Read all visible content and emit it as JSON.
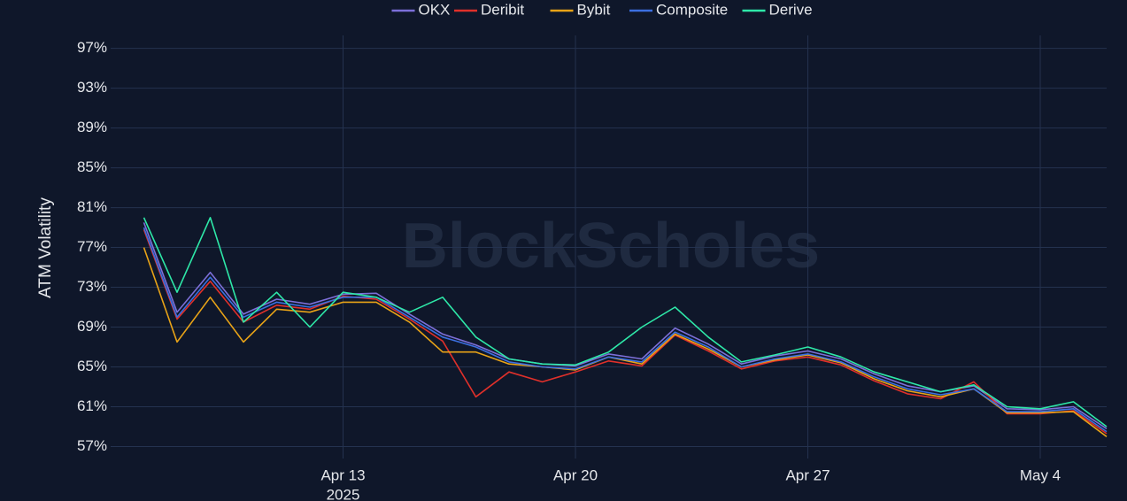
{
  "chart_data": {
    "type": "line",
    "watermark": "BlockScholes",
    "y_label": "ATM Volatility",
    "x": [
      "2025-04-07",
      "2025-04-08",
      "2025-04-09",
      "2025-04-10",
      "2025-04-11",
      "2025-04-12",
      "2025-04-13",
      "2025-04-14",
      "2025-04-15",
      "2025-04-16",
      "2025-04-17",
      "2025-04-18",
      "2025-04-19",
      "2025-04-20",
      "2025-04-21",
      "2025-04-22",
      "2025-04-23",
      "2025-04-24",
      "2025-04-25",
      "2025-04-26",
      "2025-04-27",
      "2025-04-28",
      "2025-04-29",
      "2025-04-30",
      "2025-05-01",
      "2025-05-02",
      "2025-05-03",
      "2025-05-04",
      "2025-05-05",
      "2025-05-06"
    ],
    "xlim": [
      "2025-04-06",
      "2025-05-06"
    ],
    "xticks": [
      {
        "value": "2025-04-13",
        "label": "Apr 13"
      },
      {
        "value": "2025-04-20",
        "label": "Apr 20"
      },
      {
        "value": "2025-04-27",
        "label": "Apr 27"
      },
      {
        "value": "2025-05-04",
        "label": "May 4"
      }
    ],
    "x_year_label": "2025",
    "ylim": [
      55.8,
      98.3
    ],
    "yticks": [
      {
        "value": 57,
        "label": "57%"
      },
      {
        "value": 61,
        "label": "61%"
      },
      {
        "value": 65,
        "label": "65%"
      },
      {
        "value": 69,
        "label": "69%"
      },
      {
        "value": 73,
        "label": "73%"
      },
      {
        "value": 77,
        "label": "77%"
      },
      {
        "value": 81,
        "label": "81%"
      },
      {
        "value": 85,
        "label": "85%"
      },
      {
        "value": 89,
        "label": "89%"
      },
      {
        "value": 93,
        "label": "93%"
      },
      {
        "value": 97,
        "label": "97%"
      }
    ],
    "grid": true,
    "legend": "top",
    "series": [
      {
        "name": "OKX",
        "color": "#7c6fd8",
        "values": [
          79.5,
          70.5,
          74.5,
          70.3,
          71.8,
          71.3,
          72.3,
          72.4,
          70.3,
          68.3,
          67.2,
          65.8,
          65.3,
          65.1,
          66.3,
          65.8,
          68.9,
          67.3,
          65.3,
          66.1,
          66.6,
          65.8,
          64.3,
          63.1,
          62.5,
          63.1,
          60.8,
          60.7,
          61,
          58.8
        ]
      },
      {
        "name": "Deribit",
        "color": "#e0302a",
        "values": [
          78.8,
          69.8,
          73.6,
          69.5,
          71.2,
          70.8,
          72.1,
          71.8,
          69.8,
          67.6,
          62,
          64.5,
          63.5,
          64.5,
          65.6,
          65.1,
          68.2,
          66.6,
          64.8,
          65.6,
          66,
          65.2,
          63.6,
          62.3,
          61.8,
          63.5,
          60.3,
          60.3,
          60.6,
          58.3
        ]
      },
      {
        "name": "Bybit",
        "color": "#e8a317",
        "values": [
          77,
          67.5,
          72,
          67.5,
          70.8,
          70.5,
          71.5,
          71.5,
          69.5,
          66.5,
          66.5,
          65.3,
          65,
          64.7,
          66,
          65.3,
          68.3,
          66.8,
          65,
          65.7,
          66.2,
          65.4,
          63.8,
          62.6,
          62,
          62.8,
          60.4,
          60.4,
          60.5,
          58
        ]
      },
      {
        "name": "Composite",
        "color": "#3b6fe0",
        "values": [
          79,
          70,
          74,
          70,
          71.5,
          71,
          72,
          72,
          70,
          68,
          67,
          65.5,
          65,
          64.8,
          66,
          65.5,
          68.5,
          67,
          65,
          65.8,
          66.3,
          65.5,
          64,
          62.8,
          62.2,
          62.8,
          60.5,
          60.5,
          60.8,
          58.5
        ]
      },
      {
        "name": "Derive",
        "color": "#2ee8a8",
        "values": [
          80,
          72.5,
          80,
          69.5,
          72.5,
          69,
          72.5,
          72,
          70.5,
          72,
          68,
          65.8,
          65.3,
          65.2,
          66.5,
          69,
          71,
          68,
          65.5,
          66.2,
          67,
          66,
          64.5,
          63.5,
          62.5,
          63.2,
          61,
          60.8,
          61.5,
          59
        ]
      }
    ]
  }
}
